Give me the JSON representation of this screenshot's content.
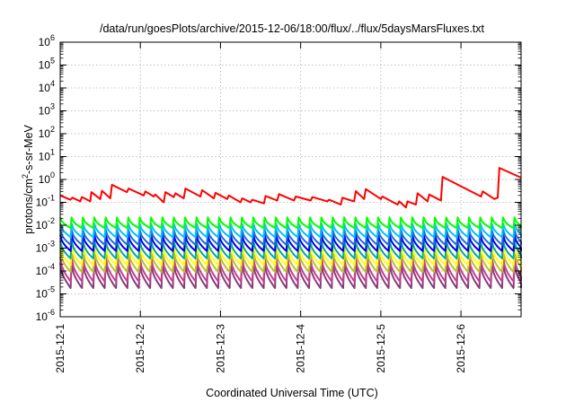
{
  "chart_data": {
    "type": "line",
    "title": "/data/run/goesPlots/archive/2015-12-06/18:00/flux/../flux/5daysMarsFluxes.txt",
    "xlabel": "Coordinated Universal Time (UTC)",
    "ylabel": {
      "pre": "protons/cm",
      "sup": "2",
      "post": "-s-sr-MeV"
    },
    "x_axis": {
      "type": "date",
      "range": [
        "2015-12-01",
        "2015-12-06T18:00"
      ],
      "ticks": [
        "2015-12-1",
        "2015-12-2",
        "2015-12-3",
        "2015-12-4",
        "2015-12-5",
        "2015-12-6"
      ]
    },
    "y_axis": {
      "scale": "log",
      "range": [
        1e-06,
        1000000.0
      ],
      "ticks": [
        {
          "base": "10",
          "exp": "-6"
        },
        {
          "base": "10",
          "exp": "-5"
        },
        {
          "base": "10",
          "exp": "-4"
        },
        {
          "base": "10",
          "exp": "-3"
        },
        {
          "base": "10",
          "exp": "-2"
        },
        {
          "base": "10",
          "exp": "-1"
        },
        {
          "base": "10",
          "exp": "0"
        },
        {
          "base": "10",
          "exp": "1"
        },
        {
          "base": "10",
          "exp": "2"
        },
        {
          "base": "10",
          "exp": "3"
        },
        {
          "base": "10",
          "exp": "4"
        },
        {
          "base": "10",
          "exp": "5"
        },
        {
          "base": "10",
          "exp": "6"
        }
      ]
    },
    "grid": true,
    "series": [
      {
        "color": "#ff0000",
        "width": 2,
        "points": [
          [
            "2015-12-01T00:00",
            0.2
          ],
          [
            "2015-12-01T03:00",
            0.13
          ],
          [
            "2015-12-01T03:40",
            0.16
          ],
          [
            "2015-12-01T06:00",
            0.11
          ],
          [
            "2015-12-01T06:30",
            0.17
          ],
          [
            "2015-12-01T09:00",
            0.11
          ],
          [
            "2015-12-01T09:20",
            0.28
          ],
          [
            "2015-12-01T12:00",
            0.14
          ],
          [
            "2015-12-01T12:30",
            0.32
          ],
          [
            "2015-12-01T15:00",
            0.15
          ],
          [
            "2015-12-01T15:30",
            0.58
          ],
          [
            "2015-12-01T20:00",
            0.28
          ],
          [
            "2015-12-01T20:30",
            0.4
          ],
          [
            "2015-12-02T01:00",
            0.2
          ],
          [
            "2015-12-02T01:30",
            0.3
          ],
          [
            "2015-12-02T04:00",
            0.18
          ],
          [
            "2015-12-02T04:30",
            0.22
          ],
          [
            "2015-12-02T07:00",
            0.1
          ],
          [
            "2015-12-02T07:30",
            0.28
          ],
          [
            "2015-12-02T10:00",
            0.17
          ],
          [
            "2015-12-02T10:30",
            0.25
          ],
          [
            "2015-12-02T13:00",
            0.15
          ],
          [
            "2015-12-02T13:30",
            0.4
          ],
          [
            "2015-12-02T18:00",
            0.18
          ],
          [
            "2015-12-02T18:30",
            0.34
          ],
          [
            "2015-12-02T22:00",
            0.15
          ],
          [
            "2015-12-02T22:30",
            0.26
          ],
          [
            "2015-12-03T02:00",
            0.14
          ],
          [
            "2015-12-03T02:30",
            0.2
          ],
          [
            "2015-12-03T06:00",
            0.1
          ],
          [
            "2015-12-03T06:30",
            0.15
          ],
          [
            "2015-12-03T09:00",
            0.1
          ],
          [
            "2015-12-03T09:30",
            0.13
          ],
          [
            "2015-12-03T13:00",
            0.09
          ],
          [
            "2015-12-03T13:30",
            0.19
          ],
          [
            "2015-12-03T17:00",
            0.12
          ],
          [
            "2015-12-03T17:30",
            0.23
          ],
          [
            "2015-12-03T22:00",
            0.12
          ],
          [
            "2015-12-03T22:30",
            0.18
          ],
          [
            "2015-12-04T03:00",
            0.12
          ],
          [
            "2015-12-04T03:30",
            0.17
          ],
          [
            "2015-12-04T08:00",
            0.11
          ],
          [
            "2015-12-04T08:30",
            0.13
          ],
          [
            "2015-12-04T12:00",
            0.08
          ],
          [
            "2015-12-04T12:30",
            0.16
          ],
          [
            "2015-12-04T16:00",
            0.11
          ],
          [
            "2015-12-04T16:30",
            0.31
          ],
          [
            "2015-12-04T19:00",
            0.14
          ],
          [
            "2015-12-04T19:30",
            0.38
          ],
          [
            "2015-12-05T00:00",
            0.14
          ],
          [
            "2015-12-05T00:30",
            0.18
          ],
          [
            "2015-12-05T05:00",
            0.08
          ],
          [
            "2015-12-05T05:30",
            0.11
          ],
          [
            "2015-12-05T07:30",
            0.06
          ],
          [
            "2015-12-05T08:00",
            0.11
          ],
          [
            "2015-12-05T10:30",
            0.08
          ],
          [
            "2015-12-05T11:00",
            0.25
          ],
          [
            "2015-12-05T14:00",
            0.11
          ],
          [
            "2015-12-05T14:30",
            0.22
          ],
          [
            "2015-12-05T18:00",
            0.12
          ],
          [
            "2015-12-05T18:30",
            1.3
          ],
          [
            "2015-12-06T06:00",
            0.18
          ],
          [
            "2015-12-06T06:30",
            0.3
          ],
          [
            "2015-12-06T10:00",
            0.14
          ],
          [
            "2015-12-06T10:30",
            0.15
          ],
          [
            "2015-12-06T11:00",
            0.16
          ],
          [
            "2015-12-06T11:30",
            3.2
          ],
          [
            "2015-12-06T18:00",
            1.2
          ]
        ]
      },
      {
        "color": "#00ff00",
        "width": 2,
        "sawtooth": {
          "period_hours": 3.4,
          "start": "2015-12-01T00:00",
          "end": "2015-12-06T18:00",
          "peak": 0.022,
          "trough": 0.0075
        }
      },
      {
        "color": "#00bfff",
        "width": 2,
        "sawtooth": {
          "period_hours": 3.4,
          "start": "2015-12-01T00:00",
          "end": "2015-12-06T18:00",
          "peak": 0.012,
          "trough": 0.003
        }
      },
      {
        "color": "#1f6bd6",
        "width": 2,
        "sawtooth": {
          "period_hours": 3.4,
          "start": "2015-12-01T00:00",
          "end": "2015-12-06T18:00",
          "peak": 0.0065,
          "trough": 0.0014
        }
      },
      {
        "color": "#0000ee",
        "width": 2,
        "sawtooth": {
          "period_hours": 3.4,
          "start": "2015-12-01T00:00",
          "end": "2015-12-06T18:00",
          "peak": 0.0038,
          "trough": 0.00075
        }
      },
      {
        "color": "#00a99d",
        "width": 2,
        "sawtooth": {
          "period_hours": 3.4,
          "start": "2015-12-01T00:00",
          "end": "2015-12-06T18:00",
          "peak": 0.0021,
          "trough": 0.00035
        }
      },
      {
        "color": "#ffff00",
        "width": 2,
        "sawtooth": {
          "period_hours": 3.4,
          "start": "2015-12-01T00:00",
          "end": "2015-12-06T18:00",
          "peak": 0.0012,
          "trough": 0.00018
        }
      },
      {
        "color": "#bdbd2a",
        "width": 2,
        "sawtooth": {
          "period_hours": 3.4,
          "start": "2015-12-01T00:00",
          "end": "2015-12-06T18:00",
          "peak": 0.00075,
          "trough": 9e-05
        }
      },
      {
        "color": "#c04090",
        "width": 2,
        "sawtooth": {
          "period_hours": 3.4,
          "start": "2015-12-01T00:00",
          "end": "2015-12-06T18:00",
          "peak": 0.0004,
          "trough": 3.5e-05
        }
      },
      {
        "color": "#8b3a7a",
        "width": 2,
        "sawtooth": {
          "period_hours": 3.4,
          "start": "2015-12-01T00:00",
          "end": "2015-12-06T18:00",
          "peak": 0.00022,
          "trough": 1.8e-05
        }
      }
    ]
  }
}
